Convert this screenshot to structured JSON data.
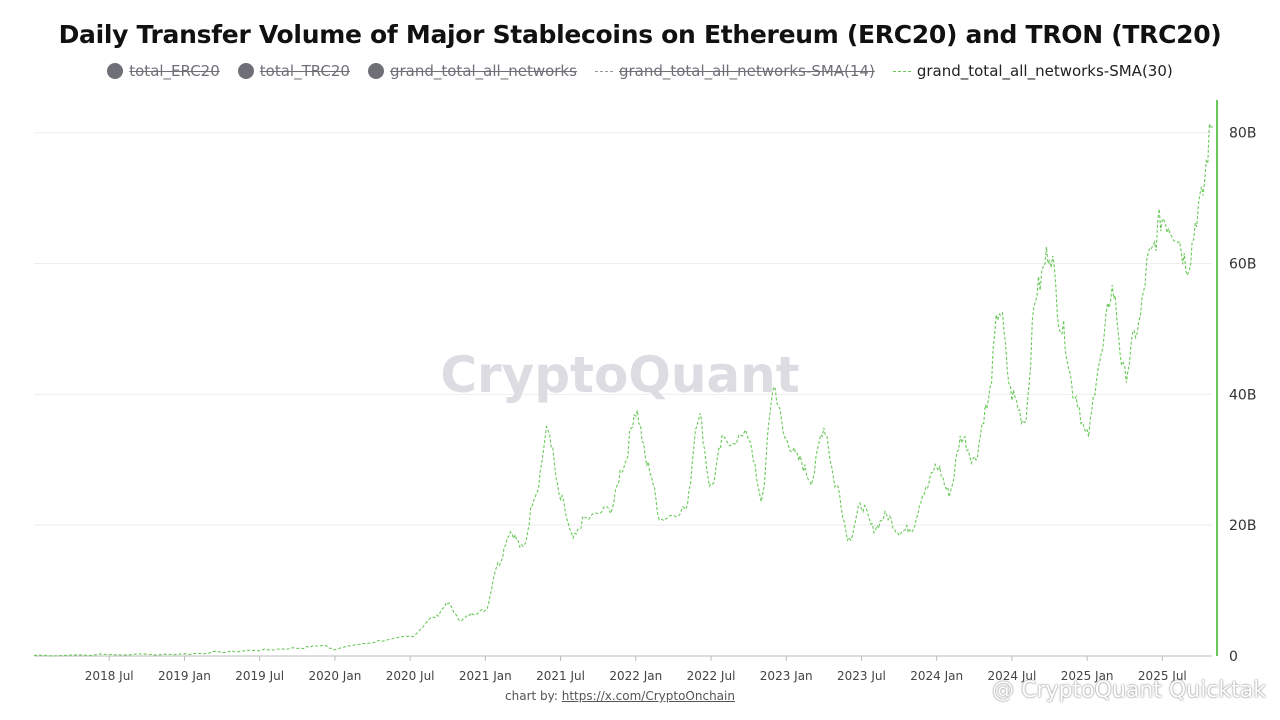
{
  "title": "Daily Transfer Volume of Major Stablecoins on Ethereum (ERC20) and TRON (TRC20)",
  "legend": [
    {
      "label": "total_ERC20",
      "marker": "dot",
      "enabled": false
    },
    {
      "label": "total_TRC20",
      "marker": "dot",
      "enabled": false
    },
    {
      "label": "grand_total_all_networks",
      "marker": "dot",
      "enabled": false
    },
    {
      "label": "grand_total_all_networks-SMA(14)",
      "marker": "dash",
      "enabled": false
    },
    {
      "label": "grand_total_all_networks-SMA(30)",
      "marker": "dash",
      "enabled": true
    }
  ],
  "credit": {
    "prefix": "chart by: ",
    "link_text": "https://x.com/CryptoOnchain"
  },
  "watermark": "CryptoQuant",
  "quicktake": "@ CryptoQuant Quicktak",
  "colors": {
    "series": "#6ac85a",
    "disabled": "#6f6f78",
    "grid": "#eeeeee",
    "axis_accent": "#6ac85a"
  },
  "chart_data": {
    "type": "line",
    "title": "Daily Transfer Volume of Major Stablecoins on Ethereum (ERC20) and TRON (TRC20)",
    "xlabel": "",
    "ylabel": "",
    "y_axis_side": "right",
    "ylim": [
      0,
      85
    ],
    "y_ticks": [
      0,
      20,
      40,
      60,
      80
    ],
    "y_tick_labels": [
      "0",
      "20B",
      "40B",
      "60B",
      "80B"
    ],
    "x_range": [
      "2018-01",
      "2025-10"
    ],
    "x_ticks": [
      "2018-07",
      "2019-01",
      "2019-07",
      "2020-01",
      "2020-07",
      "2021-01",
      "2021-07",
      "2022-01",
      "2022-07",
      "2023-01",
      "2023-07",
      "2024-01",
      "2024-07",
      "2025-01",
      "2025-07"
    ],
    "x_tick_labels": [
      "2018 Jul",
      "2019 Jan",
      "2019 Jul",
      "2020 Jan",
      "2020 Jul",
      "2021 Jan",
      "2021 Jul",
      "2022 Jan",
      "2022 Jul",
      "2023 Jan",
      "2023 Jul",
      "2024 Jan",
      "2024 Jul",
      "2025 Jan",
      "2025 Jul"
    ],
    "grid": true,
    "legend_position": "top",
    "series": [
      {
        "name": "grand_total_all_networks-SMA(30)",
        "style": "dashed",
        "unit": "B",
        "points": [
          [
            "2018-01",
            0.1
          ],
          [
            "2018-07",
            0.2
          ],
          [
            "2019-01",
            0.3
          ],
          [
            "2019-04",
            0.6
          ],
          [
            "2019-07",
            0.9
          ],
          [
            "2019-10",
            1.2
          ],
          [
            "2019-12",
            1.6
          ],
          [
            "2020-01",
            1.1
          ],
          [
            "2020-03",
            1.8
          ],
          [
            "2020-05",
            2.4
          ],
          [
            "2020-07",
            3.0
          ],
          [
            "2020-09",
            6.0
          ],
          [
            "2020-10",
            8.0
          ],
          [
            "2020-11",
            5.5
          ],
          [
            "2020-12",
            6.5
          ],
          [
            "2021-01",
            7.0
          ],
          [
            "2021-02",
            14.0
          ],
          [
            "2021-03",
            19.0
          ],
          [
            "2021-04",
            16.5
          ],
          [
            "2021-05",
            25.0
          ],
          [
            "2021-06",
            34.5
          ],
          [
            "2021-07",
            24.0
          ],
          [
            "2021-08",
            18.0
          ],
          [
            "2021-09",
            21.0
          ],
          [
            "2021-11",
            22.5
          ],
          [
            "2021-12",
            29.0
          ],
          [
            "2022-01",
            37.5
          ],
          [
            "2022-02",
            29.0
          ],
          [
            "2022-03",
            21.0
          ],
          [
            "2022-05",
            22.5
          ],
          [
            "2022-06",
            37.0
          ],
          [
            "2022-07",
            26.0
          ],
          [
            "2022-08",
            33.0
          ],
          [
            "2022-10",
            33.5
          ],
          [
            "2022-11",
            24.0
          ],
          [
            "2022-12",
            41.0
          ],
          [
            "2023-01",
            33.0
          ],
          [
            "2023-02",
            30.0
          ],
          [
            "2023-03",
            27.0
          ],
          [
            "2023-04",
            35.0
          ],
          [
            "2023-05",
            26.0
          ],
          [
            "2023-06",
            18.0
          ],
          [
            "2023-07",
            23.0
          ],
          [
            "2023-08",
            19.5
          ],
          [
            "2023-09",
            21.5
          ],
          [
            "2023-10",
            19.0
          ],
          [
            "2023-11",
            19.5
          ],
          [
            "2023-12",
            25.0
          ],
          [
            "2024-01",
            29.0
          ],
          [
            "2024-02",
            25.0
          ],
          [
            "2024-03",
            33.5
          ],
          [
            "2024-04",
            30.0
          ],
          [
            "2024-05",
            38.0
          ],
          [
            "2024-06",
            53.0
          ],
          [
            "2024-07",
            40.0
          ],
          [
            "2024-08",
            36.0
          ],
          [
            "2024-09",
            56.0
          ],
          [
            "2024-10",
            62.0
          ],
          [
            "2024-11",
            50.0
          ],
          [
            "2024-12",
            40.0
          ],
          [
            "2025-01",
            33.5
          ],
          [
            "2025-02",
            45.0
          ],
          [
            "2025-03",
            56.0
          ],
          [
            "2025-04",
            43.0
          ],
          [
            "2025-05",
            50.0
          ],
          [
            "2025-06",
            61.0
          ],
          [
            "2025-07",
            67.0
          ],
          [
            "2025-08",
            65.0
          ],
          [
            "2025-09",
            60.0
          ],
          [
            "2025-10",
            69.0
          ],
          [
            "2025-11",
            81.0
          ]
        ]
      }
    ]
  }
}
